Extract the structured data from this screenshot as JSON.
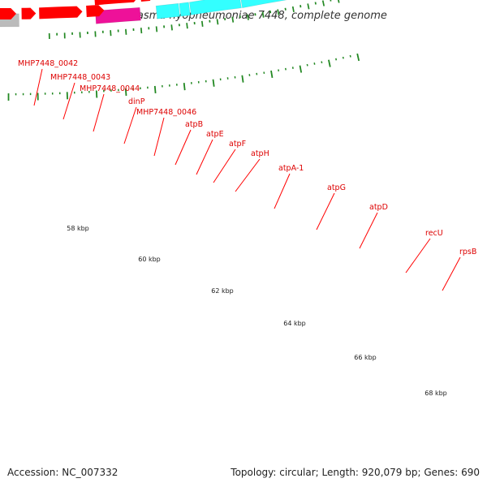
{
  "title": "Mycoplasma hyopneumoniae 7448, complete genome",
  "footer": {
    "accession": "Accession: NC_007332",
    "summary": "Topology: circular; Length: 920,079 bp; Genes: 690"
  },
  "colors": {
    "background": "#ffffff",
    "cds_strand": "#ff0000",
    "label_line": "#ff0000",
    "gene_label": "#dd0000",
    "backbone": "#888888",
    "tick": "#228822",
    "kbp_label": "#222222",
    "cyan_feature": "#33ffff",
    "magenta_feature": "#ee1199",
    "grey_feature": "#bbbbbb",
    "pink_feature": "#ee7777",
    "lime_feature": "#99ee22"
  },
  "gene_labels": [
    "MHP7448_0042",
    "MHP7448_0043",
    "MHP7448_0044",
    "dinP",
    "MHP7448_0046",
    "atpB",
    "atpE",
    "atpF",
    "atpH",
    "atpA-1",
    "atpG",
    "atpD",
    "recU",
    "rpsB"
  ],
  "kbp_labels": [
    "58 kbp",
    "60 kbp",
    "62 kbp",
    "64 kbp",
    "66 kbp",
    "68 kbp"
  ],
  "tracks": {
    "outer_features": [
      {
        "color": "grey_feature"
      },
      {
        "color": "magenta_feature"
      },
      {
        "color": "cyan_feature"
      },
      {
        "color": "cyan_feature"
      },
      {
        "color": "cyan_feature"
      },
      {
        "color": "cyan_feature"
      },
      {
        "color": "cyan_feature"
      },
      {
        "color": "cyan_feature"
      },
      {
        "color": "grey_feature"
      },
      {
        "color": "pink_feature"
      },
      {
        "color": "pink_feature"
      },
      {
        "color": "lime_feature"
      }
    ],
    "cds_arrow_count": 20
  }
}
